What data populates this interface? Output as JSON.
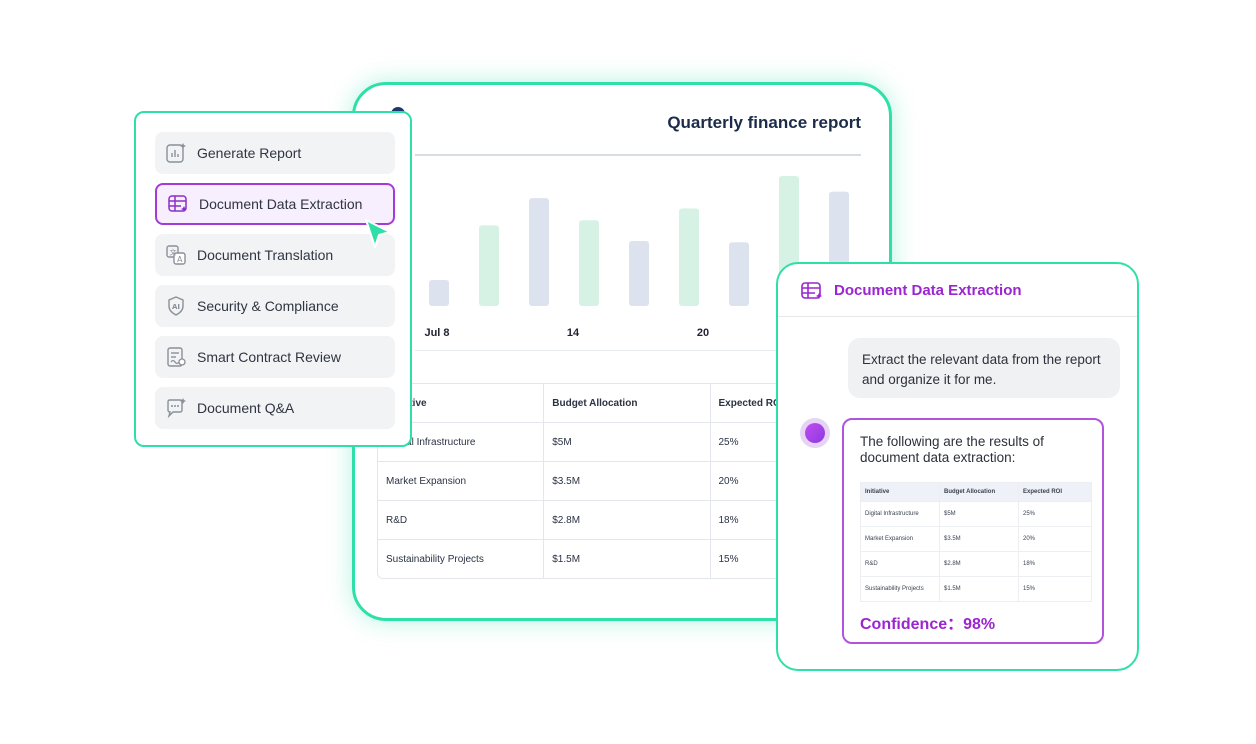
{
  "report": {
    "title": "Quarterly finance report",
    "table": {
      "headers": [
        "Initiative",
        "Budget Allocation",
        "Expected ROI"
      ],
      "rows": [
        [
          "Digital Infrastructure",
          "$5M",
          "25%"
        ],
        [
          "Market Expansion",
          "$3.5M",
          "20%"
        ],
        [
          "R&D",
          "$2.8M",
          "18%"
        ],
        [
          "Sustainability Projects",
          "$1.5M",
          "15%"
        ]
      ]
    }
  },
  "chart_data": {
    "type": "bar",
    "x_tick_labels": [
      "Jul 8",
      "14",
      "20"
    ],
    "values": [
      0.2,
      0.62,
      0.83,
      0.66,
      0.5,
      0.75,
      0.49,
      1.0,
      0.88
    ],
    "colors": [
      "#dde3ee",
      "#d5f2e5",
      "#dde3ee",
      "#d5f2e5",
      "#dde3ee",
      "#d5f2e5",
      "#dde3ee",
      "#d5f2e5",
      "#dde3ee"
    ]
  },
  "menu": {
    "items": [
      {
        "label": "Generate Report",
        "icon": "report-chart-icon"
      },
      {
        "label": "Document Data Extraction",
        "icon": "table-extract-icon",
        "active": true
      },
      {
        "label": "Document Translation",
        "icon": "translate-icon"
      },
      {
        "label": "Security & Compliance",
        "icon": "ai-shield-icon"
      },
      {
        "label": "Smart Contract Review",
        "icon": "contract-icon"
      },
      {
        "label": "Document Q&A",
        "icon": "chat-sparkle-icon"
      }
    ]
  },
  "chat": {
    "title": "Document Data Extraction",
    "user_message": "Extract the relevant data from the report and organize it for me.",
    "bot_message": "The following are the results of document data extraction:",
    "table": {
      "headers": [
        "Initiative",
        "Budget Allocation",
        "Expected ROI"
      ],
      "rows": [
        [
          "Digital Infrastructure",
          "$5M",
          "25%"
        ],
        [
          "Market Expansion",
          "$3.5M",
          "20%"
        ],
        [
          "R&D",
          "$2.8M",
          "18%"
        ],
        [
          "Sustainability Projects",
          "$1.5M",
          "15%"
        ]
      ]
    },
    "confidence": "Confidence：98%"
  },
  "colors": {
    "accent_green": "#2ee0a8",
    "accent_purple": "#9b25cf",
    "navy": "#1b2b48"
  }
}
